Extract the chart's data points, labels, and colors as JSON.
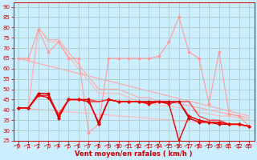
{
  "xlabel": "Vent moyen/en rafales ( km/h )",
  "background_color": "#cceeff",
  "grid_color": "#aacccc",
  "xlim": [
    -0.5,
    23.5
  ],
  "ylim": [
    25,
    92
  ],
  "yticks": [
    25,
    30,
    35,
    40,
    45,
    50,
    55,
    60,
    65,
    70,
    75,
    80,
    85,
    90
  ],
  "xticks": [
    0,
    1,
    2,
    3,
    4,
    5,
    6,
    7,
    8,
    9,
    10,
    11,
    12,
    13,
    14,
    15,
    16,
    17,
    18,
    19,
    20,
    21,
    22,
    23
  ],
  "lines": [
    {
      "x": [
        0,
        1,
        2,
        3,
        4,
        5,
        6,
        7,
        8,
        9,
        10,
        11,
        12,
        13,
        14,
        15,
        16,
        17,
        18,
        19,
        20,
        21,
        22,
        23
      ],
      "y": [
        41,
        41,
        80,
        74,
        74,
        68,
        62,
        56,
        50,
        50,
        50,
        48,
        46,
        46,
        44,
        44,
        43,
        42,
        41,
        40,
        39,
        38,
        37,
        36
      ],
      "color": "#ffaaaa",
      "lw": 0.9,
      "marker": null,
      "ms": 0,
      "zorder": 1
    },
    {
      "x": [
        0,
        1,
        2,
        3,
        4,
        5,
        6,
        7,
        8,
        9,
        10,
        11,
        12,
        13,
        14,
        15,
        16,
        17,
        18,
        19,
        20,
        21,
        22,
        23
      ],
      "y": [
        41,
        41,
        80,
        73,
        73,
        66,
        60,
        54,
        48,
        48,
        48,
        46,
        44,
        44,
        42,
        42,
        41,
        40,
        39,
        38,
        37,
        37,
        36,
        35
      ],
      "color": "#ffbbbb",
      "lw": 0.9,
      "marker": null,
      "ms": 0,
      "zorder": 1
    },
    {
      "x": [
        0,
        23
      ],
      "y": [
        65,
        37
      ],
      "color": "#ffaaaa",
      "lw": 0.9,
      "marker": null,
      "ms": 0,
      "zorder": 1
    },
    {
      "x": [
        0,
        23
      ],
      "y": [
        41,
        32
      ],
      "color": "#ffbbbb",
      "lw": 0.9,
      "marker": null,
      "ms": 0,
      "zorder": 1
    },
    {
      "x": [
        0,
        1,
        2,
        3,
        4,
        5,
        6,
        7,
        8,
        9,
        10,
        11,
        12,
        13,
        14,
        15,
        16,
        17,
        18,
        19,
        20,
        21,
        22,
        23
      ],
      "y": [
        65,
        65,
        79,
        68,
        73,
        65,
        65,
        29,
        33,
        65,
        65,
        65,
        65,
        65,
        66,
        73,
        85,
        68,
        65,
        43,
        68,
        38,
        37,
        32
      ],
      "color": "#ff9999",
      "lw": 0.8,
      "marker": "D",
      "ms": 2.5,
      "zorder": 2
    },
    {
      "x": [
        0,
        1,
        2,
        3,
        4,
        5,
        6,
        7,
        8,
        9,
        10,
        11,
        12,
        13,
        14,
        15,
        16,
        17,
        18,
        19,
        20,
        21,
        22,
        23
      ],
      "y": [
        41,
        41,
        48,
        48,
        36,
        45,
        45,
        45,
        33,
        45,
        44,
        44,
        44,
        44,
        44,
        44,
        44,
        36,
        34,
        34,
        33,
        33,
        33,
        32
      ],
      "color": "#cc0000",
      "lw": 1.0,
      "marker": "D",
      "ms": 2.5,
      "zorder": 3
    },
    {
      "x": [
        0,
        1,
        2,
        3,
        4,
        5,
        6,
        7,
        8,
        9,
        10,
        11,
        12,
        13,
        14,
        15,
        16,
        17,
        18,
        19,
        20,
        21,
        22,
        23
      ],
      "y": [
        41,
        41,
        47,
        46,
        37,
        45,
        45,
        44,
        34,
        45,
        44,
        44,
        44,
        43,
        44,
        43,
        25,
        37,
        35,
        34,
        34,
        33,
        33,
        32
      ],
      "color": "#ee0000",
      "lw": 1.0,
      "marker": "D",
      "ms": 2.5,
      "zorder": 3
    },
    {
      "x": [
        0,
        1,
        2,
        3,
        4,
        5,
        6,
        7,
        8,
        9,
        10,
        11,
        12,
        13,
        14,
        15,
        16,
        17,
        18,
        19,
        20,
        21,
        22,
        23
      ],
      "y": [
        41,
        41,
        47,
        47,
        37,
        45,
        45,
        44,
        44,
        45,
        44,
        44,
        44,
        43,
        44,
        43,
        44,
        37,
        35,
        34,
        34,
        33,
        33,
        32
      ],
      "color": "#dd2222",
      "lw": 0.9,
      "marker": null,
      "ms": 0,
      "zorder": 2
    },
    {
      "x": [
        0,
        1,
        2,
        3,
        4,
        5,
        6,
        7,
        8,
        9,
        10,
        11,
        12,
        13,
        14,
        15,
        16,
        17,
        18,
        19,
        20,
        21,
        22,
        23
      ],
      "y": [
        41,
        41,
        47,
        47,
        38,
        45,
        45,
        45,
        44,
        45,
        44,
        44,
        44,
        44,
        44,
        44,
        44,
        44,
        37,
        35,
        35,
        33,
        33,
        32
      ],
      "color": "#ff3333",
      "lw": 0.9,
      "marker": null,
      "ms": 0,
      "zorder": 2
    }
  ],
  "tick_color": "#cc0000",
  "xlabel_color": "#cc0000",
  "axis_color": "#cc0000",
  "tick_labelsize": 5.0,
  "xlabel_fontsize": 6.0
}
